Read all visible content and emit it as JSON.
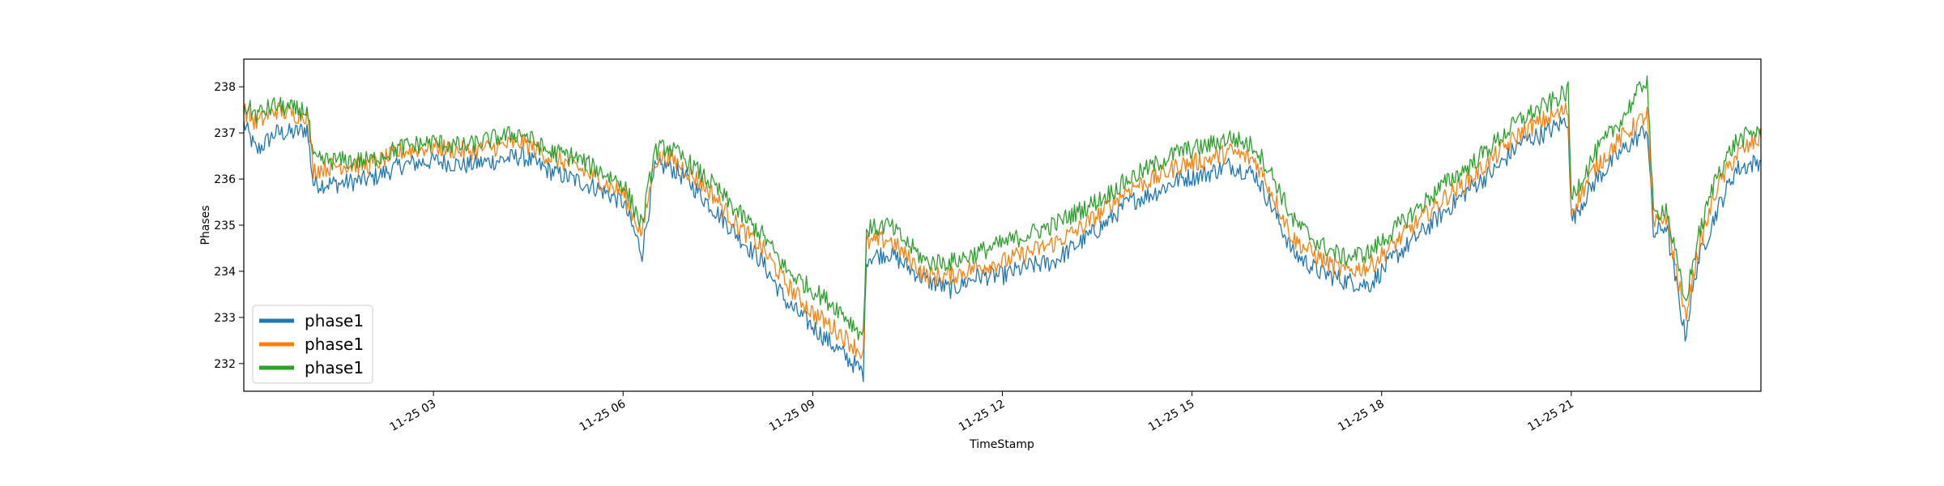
{
  "chart_data": {
    "type": "line",
    "title": "",
    "xlabel": "TimeStamp",
    "ylabel": "Phases",
    "x_unit": "hours since 11-25 00:00",
    "xlim": [
      0.0,
      24.0
    ],
    "ylim": [
      231.4,
      238.6
    ],
    "x_ticks": [
      {
        "value": 3,
        "label": "11-25 03"
      },
      {
        "value": 6,
        "label": "11-25 06"
      },
      {
        "value": 9,
        "label": "11-25 09"
      },
      {
        "value": 12,
        "label": "11-25 12"
      },
      {
        "value": 15,
        "label": "11-25 15"
      },
      {
        "value": 18,
        "label": "11-25 18"
      },
      {
        "value": 21,
        "label": "11-25 21"
      }
    ],
    "y_ticks": [
      232,
      233,
      234,
      235,
      236,
      237,
      238
    ],
    "grid": false,
    "legend_position": "lower-left",
    "x": [
      0.0,
      0.2,
      0.5,
      0.8,
      1.0,
      1.1,
      1.5,
      2.0,
      2.5,
      3.0,
      3.5,
      4.0,
      4.4,
      4.8,
      5.2,
      5.6,
      6.0,
      6.3,
      6.5,
      6.7,
      7.0,
      7.4,
      7.8,
      8.2,
      8.6,
      9.0,
      9.4,
      9.8,
      9.85,
      10.2,
      10.5,
      10.8,
      11.2,
      11.6,
      12.0,
      12.4,
      12.8,
      13.2,
      13.6,
      14.0,
      14.4,
      14.8,
      15.2,
      15.6,
      16.0,
      16.3,
      16.6,
      17.0,
      17.4,
      17.8,
      18.2,
      18.6,
      19.0,
      19.4,
      19.8,
      20.2,
      20.6,
      20.95,
      21.0,
      21.4,
      21.8,
      22.2,
      22.3,
      22.5,
      22.8,
      23.0,
      23.3,
      23.6,
      24.0
    ],
    "series": [
      {
        "name": "phase1",
        "color": "#1f77b4",
        "values": [
          237.2,
          236.6,
          237.0,
          237.0,
          237.1,
          235.9,
          235.9,
          236.0,
          236.3,
          236.4,
          236.3,
          236.4,
          236.5,
          236.2,
          236.0,
          235.8,
          235.5,
          234.4,
          236.2,
          236.3,
          236.0,
          235.4,
          234.8,
          234.2,
          233.3,
          232.8,
          232.3,
          231.8,
          234.3,
          234.4,
          234.1,
          233.8,
          233.6,
          233.9,
          233.9,
          234.1,
          234.2,
          234.6,
          235.0,
          235.5,
          235.7,
          236.0,
          236.1,
          236.3,
          236.1,
          235.3,
          234.4,
          234.0,
          233.8,
          233.7,
          234.3,
          234.8,
          235.3,
          235.8,
          236.2,
          236.8,
          237.0,
          237.3,
          235.1,
          236.0,
          236.6,
          237.1,
          234.8,
          235.0,
          232.6,
          234.2,
          235.3,
          236.2,
          236.4
        ]
      },
      {
        "name": "phase1",
        "color": "#ff7f0e",
        "values": [
          237.5,
          237.2,
          237.5,
          237.4,
          237.4,
          236.2,
          236.3,
          236.3,
          236.6,
          236.7,
          236.6,
          236.7,
          236.8,
          236.5,
          236.3,
          236.0,
          235.7,
          234.8,
          236.4,
          236.5,
          236.2,
          235.7,
          235.0,
          234.5,
          233.7,
          233.1,
          232.7,
          232.2,
          234.6,
          234.7,
          234.3,
          233.9,
          233.9,
          234.1,
          234.2,
          234.4,
          234.6,
          234.9,
          235.3,
          235.8,
          236.0,
          236.3,
          236.4,
          236.6,
          236.4,
          235.6,
          234.7,
          234.3,
          234.0,
          234.1,
          234.6,
          235.1,
          235.6,
          236.0,
          236.5,
          237.0,
          237.3,
          237.5,
          235.3,
          236.3,
          236.9,
          237.4,
          235.0,
          235.2,
          233.0,
          234.4,
          235.8,
          236.5,
          236.9
        ]
      },
      {
        "name": "phase1",
        "color": "#2ca02c",
        "values": [
          237.6,
          237.4,
          237.6,
          237.5,
          237.5,
          236.4,
          236.4,
          236.4,
          236.7,
          236.8,
          236.7,
          236.9,
          237.0,
          236.6,
          236.5,
          236.2,
          235.9,
          235.0,
          236.6,
          236.7,
          236.4,
          235.9,
          235.3,
          234.8,
          234.0,
          233.6,
          233.2,
          232.6,
          234.9,
          235.0,
          234.6,
          234.2,
          234.2,
          234.4,
          234.6,
          234.8,
          235.0,
          235.3,
          235.6,
          236.0,
          236.3,
          236.6,
          236.7,
          236.9,
          236.7,
          236.0,
          235.1,
          234.6,
          234.3,
          234.4,
          234.9,
          235.4,
          235.9,
          236.3,
          236.8,
          237.3,
          237.6,
          237.9,
          235.6,
          236.6,
          237.3,
          238.2,
          235.2,
          235.4,
          233.3,
          234.7,
          236.1,
          236.8,
          237.1
        ]
      }
    ]
  }
}
